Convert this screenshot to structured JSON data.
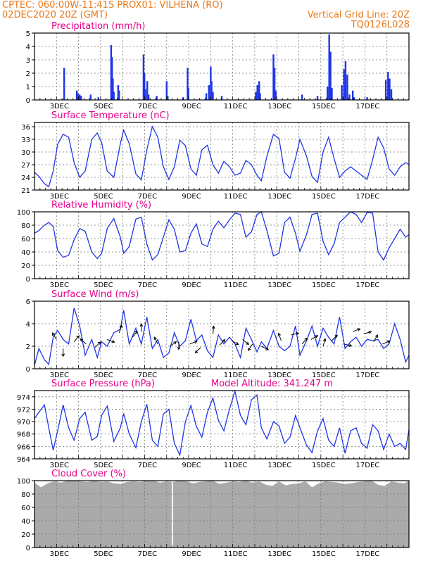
{
  "header": {
    "left1": "CPTEC:   060:00W-11:41S   PROX01: VILHENA (RO)",
    "left2": "02DEC2020 20Z (GMT)",
    "right1": "Vertical Grid Line: 20Z",
    "right2": "TQ0126L028"
  },
  "colors": {
    "title": "#e8008a",
    "header": "#e8791a",
    "series": "#1f35e6",
    "cloud": "#aaaaaa"
  },
  "x_tick_labels": [
    "3DEC",
    "5DEC",
    "7DEC",
    "9DEC",
    "11DEC",
    "13DEC",
    "15DEC",
    "17DEC"
  ],
  "chart_data": [
    {
      "id": "precip",
      "type": "bar",
      "title": "Precipitation (mm/h)",
      "ylim": [
        0,
        5
      ],
      "yticks": [
        0,
        1,
        2,
        3,
        4,
        5
      ],
      "x_unit": "days since 02DEC2020 20Z",
      "points": [
        [
          1.35,
          2.4
        ],
        [
          1.92,
          0.7
        ],
        [
          1.97,
          0.5
        ],
        [
          2.05,
          0.4
        ],
        [
          2.12,
          0.3
        ],
        [
          2.55,
          0.4
        ],
        [
          2.9,
          0.2
        ],
        [
          3.48,
          4.1
        ],
        [
          3.52,
          3.2
        ],
        [
          3.56,
          1.6
        ],
        [
          3.6,
          0.6
        ],
        [
          3.8,
          1.1
        ],
        [
          3.84,
          0.7
        ],
        [
          4.95,
          3.4
        ],
        [
          4.99,
          2.0
        ],
        [
          5.03,
          0.8
        ],
        [
          5.12,
          1.4
        ],
        [
          5.18,
          0.4
        ],
        [
          5.55,
          0.3
        ],
        [
          6.0,
          1.4
        ],
        [
          6.05,
          0.3
        ],
        [
          6.75,
          0.2
        ],
        [
          6.95,
          2.4
        ],
        [
          6.99,
          0.9
        ],
        [
          7.8,
          0.5
        ],
        [
          7.92,
          1.1
        ],
        [
          8.0,
          2.5
        ],
        [
          8.04,
          1.4
        ],
        [
          8.1,
          0.6
        ],
        [
          8.5,
          0.3
        ],
        [
          10.05,
          0.6
        ],
        [
          10.12,
          1.1
        ],
        [
          10.2,
          1.4
        ],
        [
          10.24,
          0.5
        ],
        [
          10.85,
          3.4
        ],
        [
          10.9,
          2.4
        ],
        [
          10.95,
          0.7
        ],
        [
          12.15,
          0.4
        ],
        [
          12.85,
          0.3
        ],
        [
          13.3,
          1.0
        ],
        [
          13.38,
          4.9
        ],
        [
          13.44,
          3.6
        ],
        [
          13.5,
          0.9
        ],
        [
          13.95,
          1.1
        ],
        [
          14.05,
          2.3
        ],
        [
          14.12,
          2.9
        ],
        [
          14.2,
          1.9
        ],
        [
          14.3,
          0.4
        ],
        [
          14.45,
          0.7
        ],
        [
          14.5,
          0.2
        ],
        [
          15.1,
          0.2
        ],
        [
          15.95,
          1.5
        ],
        [
          16.05,
          2.1
        ],
        [
          16.12,
          1.6
        ],
        [
          16.2,
          0.8
        ]
      ]
    },
    {
      "id": "temp",
      "type": "line",
      "title": "Surface Temperature (nC)",
      "ylim": [
        21,
        37
      ],
      "yticks": [
        21,
        24,
        27,
        30,
        33,
        36
      ],
      "x": [
        0,
        0.2,
        0.45,
        0.65,
        0.85,
        1.05,
        1.3,
        1.55,
        1.8,
        2.05,
        2.3,
        2.6,
        2.85,
        3.05,
        3.3,
        3.6,
        3.9,
        4.05,
        4.3,
        4.6,
        4.85,
        5.1,
        5.35,
        5.6,
        5.85,
        6.1,
        6.35,
        6.6,
        6.85,
        7.1,
        7.35,
        7.6,
        7.85,
        8.1,
        8.35,
        8.6,
        8.85,
        9.1,
        9.35,
        9.6,
        9.85,
        10.1,
        10.3,
        10.55,
        10.85,
        11.1,
        11.35,
        11.6,
        11.85,
        12.05,
        12.35,
        12.6,
        12.85,
        13.1,
        13.35,
        13.6,
        13.85,
        14.1,
        14.35,
        14.6,
        14.85,
        15.1,
        15.35,
        15.6,
        15.85,
        16.1,
        16.35,
        16.6,
        16.85,
        17.0
      ],
      "y": [
        25.2,
        24.2,
        22.5,
        21.8,
        25.5,
        31.8,
        34.2,
        33.5,
        27.5,
        24.0,
        25.5,
        33.0,
        34.5,
        32.2,
        25.5,
        24.0,
        32.0,
        35.2,
        32.0,
        24.8,
        23.4,
        30.5,
        36.0,
        33.5,
        26.5,
        23.5,
        26.5,
        32.8,
        31.5,
        26.0,
        24.5,
        30.5,
        31.6,
        27.0,
        25.0,
        27.8,
        26.5,
        24.5,
        25.0,
        28.0,
        27.0,
        24.5,
        23.2,
        29.0,
        34.2,
        33.2,
        25.2,
        23.8,
        28.5,
        33.0,
        29.0,
        24.2,
        22.8,
        30.0,
        33.5,
        28.5,
        24.0,
        25.5,
        26.5,
        25.5,
        24.5,
        23.5,
        28.2,
        33.5,
        31.0,
        26.0,
        24.5,
        26.5,
        27.5,
        27.0
      ]
    },
    {
      "id": "rh",
      "type": "line",
      "title": "Relative Humidity (%)",
      "ylim": [
        0,
        100
      ],
      "yticks": [
        0,
        20,
        40,
        60,
        80,
        100
      ],
      "x": [
        0,
        0.2,
        0.45,
        0.65,
        0.85,
        1.05,
        1.3,
        1.55,
        1.8,
        2.05,
        2.3,
        2.6,
        2.85,
        3.05,
        3.3,
        3.6,
        3.9,
        4.05,
        4.3,
        4.6,
        4.85,
        5.1,
        5.35,
        5.6,
        5.85,
        6.1,
        6.35,
        6.6,
        6.85,
        7.1,
        7.35,
        7.6,
        7.85,
        8.1,
        8.35,
        8.6,
        8.85,
        9.1,
        9.35,
        9.6,
        9.85,
        10.1,
        10.3,
        10.55,
        10.85,
        11.1,
        11.35,
        11.6,
        11.85,
        12.05,
        12.35,
        12.6,
        12.85,
        13.1,
        13.35,
        13.6,
        13.85,
        14.1,
        14.35,
        14.6,
        14.85,
        15.1,
        15.35,
        15.6,
        15.85,
        16.1,
        16.35,
        16.6,
        16.85,
        17.0
      ],
      "y": [
        68,
        72,
        80,
        84,
        78,
        42,
        32,
        35,
        58,
        75,
        71,
        40,
        30,
        38,
        75,
        90,
        62,
        38,
        48,
        89,
        92,
        52,
        28,
        36,
        62,
        88,
        74,
        40,
        42,
        68,
        82,
        52,
        48,
        74,
        86,
        76,
        88,
        98,
        96,
        62,
        70,
        96,
        100,
        72,
        34,
        38,
        84,
        92,
        68,
        41,
        66,
        96,
        98,
        56,
        36,
        52,
        84,
        92,
        100,
        96,
        84,
        99,
        98,
        40,
        28,
        46,
        60,
        74,
        62,
        66
      ]
    },
    {
      "id": "wind",
      "type": "line",
      "title": "Surface Wind (m/s)",
      "ylim": [
        0,
        6
      ],
      "yticks": [
        0,
        2,
        4,
        6
      ],
      "x": [
        0,
        0.2,
        0.45,
        0.65,
        0.85,
        1.05,
        1.3,
        1.55,
        1.8,
        2.05,
        2.3,
        2.6,
        2.85,
        3.05,
        3.3,
        3.6,
        3.9,
        4.05,
        4.3,
        4.6,
        4.85,
        5.1,
        5.35,
        5.6,
        5.85,
        6.1,
        6.35,
        6.6,
        6.85,
        7.1,
        7.35,
        7.6,
        7.85,
        8.1,
        8.35,
        8.6,
        8.85,
        9.1,
        9.35,
        9.6,
        9.85,
        10.1,
        10.3,
        10.55,
        10.85,
        11.1,
        11.35,
        11.6,
        11.85,
        12.05,
        12.35,
        12.6,
        12.85,
        13.1,
        13.35,
        13.6,
        13.85,
        14.1,
        14.35,
        14.6,
        14.85,
        15.1,
        15.35,
        15.6,
        15.85,
        16.1,
        16.35,
        16.6,
        16.85,
        17.0
      ],
      "y": [
        0.3,
        1.8,
        0.8,
        0.4,
        2.8,
        3.4,
        2.6,
        2.2,
        5.4,
        3.8,
        1.2,
        2.6,
        1.0,
        2.4,
        2.0,
        3.2,
        3.5,
        5.2,
        2.2,
        3.6,
        2.2,
        4.6,
        1.8,
        2.6,
        1.0,
        1.4,
        3.2,
        2.0,
        2.5,
        4.4,
        2.5,
        3.0,
        1.6,
        1.0,
        3.0,
        2.2,
        2.8,
        2.2,
        1.0,
        3.6,
        2.6,
        1.5,
        2.4,
        1.8,
        3.4,
        2.0,
        1.6,
        2.0,
        3.8,
        1.2,
        2.5,
        3.8,
        2.0,
        3.6,
        2.8,
        2.2,
        4.6,
        1.8,
        2.4,
        2.8,
        2.0,
        2.6,
        2.5,
        2.6,
        1.8,
        2.2,
        4.0,
        2.6,
        0.6,
        1.2
      ],
      "arrows": [
        [
          1.0,
          2.6,
          -0.5,
          0.8
        ],
        [
          1.3,
          1.8,
          0,
          -0.9
        ],
        [
          1.8,
          2.4,
          0.5,
          0.6
        ],
        [
          2.35,
          2.2,
          -0.7,
          0.6
        ],
        [
          2.75,
          1.9,
          0.5,
          0.5
        ],
        [
          3.3,
          2.6,
          0.8,
          -0.3
        ],
        [
          3.85,
          3.2,
          0.3,
          1.0
        ],
        [
          4.45,
          2.8,
          0.6,
          0.8
        ],
        [
          4.85,
          3.3,
          0,
          1.0
        ],
        [
          5.6,
          2.2,
          -0.4,
          0.8
        ],
        [
          6.15,
          2.0,
          0.7,
          0.5
        ],
        [
          6.55,
          2.4,
          0,
          -0.8
        ],
        [
          7.05,
          2.2,
          0.8,
          0.3
        ],
        [
          7.55,
          1.9,
          -0.6,
          -0.6
        ],
        [
          8.1,
          3.1,
          0.1,
          1.0
        ],
        [
          8.4,
          2.1,
          0.6,
          0.6
        ],
        [
          8.95,
          2.5,
          0.7,
          -0.4
        ],
        [
          9.45,
          2.6,
          0.6,
          -0.5
        ],
        [
          9.9,
          2.2,
          -0.4,
          -0.6
        ],
        [
          10.3,
          2.0,
          0.6,
          -0.3
        ],
        [
          11.2,
          2.5,
          -0.3,
          0.8
        ],
        [
          11.65,
          3.0,
          0.8,
          0.2
        ],
        [
          12.15,
          2.2,
          0.6,
          0.7
        ],
        [
          12.55,
          2.6,
          0.7,
          0.4
        ],
        [
          13.1,
          2.0,
          0.3,
          1.0
        ],
        [
          13.5,
          2.5,
          0.6,
          0.6
        ],
        [
          14.05,
          2.2,
          0.8,
          -0.2
        ],
        [
          14.45,
          3.3,
          0.8,
          0.3
        ],
        [
          14.95,
          3.1,
          0.7,
          0.2
        ],
        [
          15.4,
          2.4,
          0.4,
          0.7
        ],
        [
          15.8,
          2.2,
          0.7,
          0.3
        ]
      ]
    },
    {
      "id": "psfc",
      "type": "line",
      "title": "Surface Pressure (hPa)",
      "annotation": "Model Altitude: 341.247 m",
      "ylim": [
        964,
        975
      ],
      "yticks": [
        964,
        966,
        968,
        970,
        972,
        974
      ],
      "x": [
        0,
        0.2,
        0.45,
        0.65,
        0.85,
        1.05,
        1.3,
        1.55,
        1.8,
        2.05,
        2.3,
        2.6,
        2.85,
        3.05,
        3.3,
        3.6,
        3.9,
        4.05,
        4.3,
        4.6,
        4.85,
        5.1,
        5.35,
        5.6,
        5.85,
        6.1,
        6.35,
        6.6,
        6.85,
        7.1,
        7.35,
        7.6,
        7.85,
        8.1,
        8.35,
        8.6,
        8.85,
        9.1,
        9.35,
        9.6,
        9.85,
        10.1,
        10.3,
        10.55,
        10.85,
        11.1,
        11.35,
        11.6,
        11.85,
        12.05,
        12.35,
        12.6,
        12.85,
        13.1,
        13.35,
        13.6,
        13.85,
        14.1,
        14.35,
        14.6,
        14.85,
        15.1,
        15.35,
        15.6,
        15.85,
        16.1,
        16.35,
        16.6,
        16.85,
        17.0
      ],
      "y": [
        970.5,
        971.5,
        972.7,
        969.0,
        965.4,
        968.5,
        972.7,
        969.0,
        967.0,
        970.5,
        971.5,
        967.0,
        967.6,
        971.0,
        972.5,
        966.8,
        969.0,
        971.3,
        968.0,
        965.8,
        970.0,
        972.8,
        967.0,
        966.0,
        971.2,
        972.0,
        966.5,
        964.6,
        970.0,
        972.6,
        969.2,
        967.5,
        971.5,
        973.8,
        970.2,
        968.5,
        972.0,
        974.9,
        971.0,
        969.5,
        973.5,
        974.3,
        969.0,
        967.2,
        970.0,
        969.3,
        966.5,
        967.5,
        971.0,
        969.0,
        966.2,
        965.0,
        968.5,
        970.5,
        967.0,
        966.0,
        969.0,
        964.9,
        968.5,
        969.0,
        966.5,
        965.7,
        969.5,
        968.5,
        965.5,
        968.0,
        966.0,
        966.5,
        965.5,
        968.7
      ]
    },
    {
      "id": "cloud",
      "type": "area",
      "title": "Cloud Cover (%)",
      "ylim": [
        0,
        100
      ],
      "yticks": [
        0,
        20,
        40,
        60,
        80,
        100
      ],
      "x": [
        0,
        0.3,
        0.6,
        0.9,
        1.2,
        1.5,
        1.8,
        2.1,
        2.4,
        2.7,
        3.0,
        3.3,
        3.6,
        3.9,
        4.2,
        4.5,
        4.8,
        5.1,
        5.4,
        5.7,
        6.0,
        6.3,
        6.6,
        6.9,
        7.2,
        7.5,
        7.8,
        8.1,
        8.4,
        8.7,
        9.0,
        9.3,
        9.6,
        9.9,
        10.2,
        10.5,
        10.8,
        11.1,
        11.4,
        11.7,
        12.0,
        12.3,
        12.6,
        12.9,
        13.2,
        13.5,
        13.8,
        14.1,
        14.4,
        14.7,
        15.0,
        15.3,
        15.6,
        15.9,
        16.2,
        16.5,
        16.8,
        17.0
      ],
      "y": [
        97,
        90,
        96,
        99,
        97,
        100,
        100,
        99,
        98,
        100,
        98,
        99,
        96,
        95,
        98,
        99,
        98,
        100,
        100,
        97,
        99,
        98,
        100,
        99,
        96,
        98,
        99,
        100,
        95,
        97,
        99,
        98,
        100,
        97,
        99,
        94,
        92,
        99,
        93,
        95,
        96,
        99,
        90,
        96,
        99,
        98,
        97,
        95,
        96,
        98,
        99,
        100,
        94,
        92,
        99,
        97,
        96,
        100
      ]
    }
  ]
}
